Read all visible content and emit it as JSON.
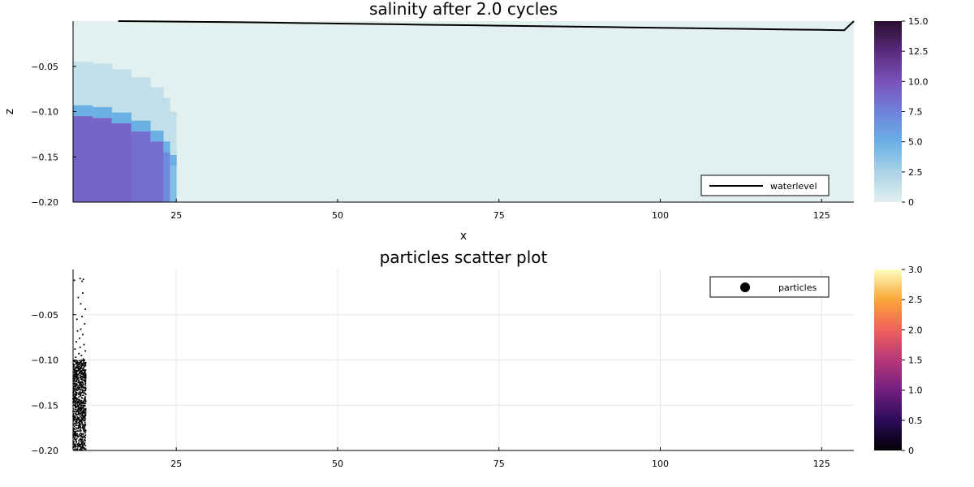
{
  "chart_data": [
    {
      "type": "heatmap",
      "title": "salinity after 2.0 cycles",
      "xlabel": "x",
      "ylabel": "z",
      "xlim": [
        9,
        130
      ],
      "ylim": [
        -0.2,
        0.0
      ],
      "xticks": [
        25,
        50,
        75,
        100,
        125
      ],
      "xtick_labels": [
        "25",
        "50",
        "75",
        "100",
        "125"
      ],
      "yticks": [
        -0.05,
        -0.1,
        -0.15,
        -0.2
      ],
      "ytick_labels": [
        "−0.05",
        "−0.10",
        "−0.15",
        "−0.20"
      ],
      "colorbar": {
        "range": [
          0,
          15
        ],
        "ticks": [
          0,
          2.5,
          5,
          7.5,
          10,
          12.5,
          15
        ],
        "tick_labels": [
          "0",
          "2.5",
          "5.0",
          "7.5",
          "10.0",
          "12.5",
          "15.0"
        ],
        "colormap": [
          "#e2f0ef",
          "#a9d2e6",
          "#6ab0e4",
          "#6f80dc",
          "#7b52b8",
          "#5a2a7e",
          "#2a0f2e"
        ]
      },
      "salt_wedge": [
        {
          "x": 9,
          "interface_z": -0.105,
          "value": 9
        },
        {
          "x": 12,
          "interface_z": -0.107,
          "value": 9
        },
        {
          "x": 15,
          "interface_z": -0.113,
          "value": 9
        },
        {
          "x": 18,
          "interface_z": -0.122,
          "value": 8.5
        },
        {
          "x": 21,
          "interface_z": -0.133,
          "value": 8.5
        },
        {
          "x": 23,
          "interface_z": -0.145,
          "value": 7
        },
        {
          "x": 24,
          "interface_z": -0.16,
          "value": 4
        }
      ],
      "background_value": 0,
      "waterlevel": {
        "name": "waterlevel",
        "x": [
          16,
          20,
          25,
          30,
          35,
          40,
          45,
          50,
          55,
          60,
          65,
          70,
          75,
          80,
          85,
          90,
          95,
          100,
          105,
          110,
          115,
          120,
          125,
          128.5,
          130
        ],
        "y": [
          0.0,
          -0.0002,
          -0.0005,
          -0.0009,
          -0.0013,
          -0.0017,
          -0.0022,
          -0.0027,
          -0.0031,
          -0.0036,
          -0.0041,
          -0.0045,
          -0.005,
          -0.0055,
          -0.0059,
          -0.0064,
          -0.0069,
          -0.0074,
          -0.0078,
          -0.0083,
          -0.0088,
          -0.0093,
          -0.0097,
          -0.01,
          0.0
        ]
      },
      "legend": {
        "position": "bottom-right",
        "entries": [
          "waterlevel"
        ]
      },
      "grid": false,
      "colors": {
        "line": "#000000"
      }
    },
    {
      "type": "scatter",
      "title": "particles scatter plot",
      "xlabel": "",
      "ylabel": "",
      "xlim": [
        9,
        130
      ],
      "ylim": [
        -0.2,
        0.0
      ],
      "xticks": [
        25,
        50,
        75,
        100,
        125
      ],
      "xtick_labels": [
        "25",
        "50",
        "75",
        "100",
        "125"
      ],
      "yticks": [
        -0.05,
        -0.1,
        -0.15,
        -0.2
      ],
      "ytick_labels": [
        "−0.05",
        "−0.10",
        "−0.15",
        "−0.20"
      ],
      "colorbar": {
        "range": [
          0,
          3
        ],
        "ticks": [
          0,
          0.5,
          1,
          1.5,
          2,
          2.5,
          3
        ],
        "tick_labels": [
          "0",
          "0.5",
          "1.0",
          "1.5",
          "2.0",
          "2.5",
          "3.0"
        ],
        "colormap": [
          "#000004",
          "#2d0b59",
          "#721f81",
          "#b73779",
          "#f1605d",
          "#fca636",
          "#fcfdbf"
        ]
      },
      "particles": {
        "name": "particles",
        "x_range": [
          9,
          11
        ],
        "dense_z_range": [
          -0.2,
          -0.1
        ],
        "sparse_points": [
          {
            "x": 9.2,
            "y": -0.012
          },
          {
            "x": 10.1,
            "y": -0.01
          },
          {
            "x": 10.4,
            "y": -0.013
          },
          {
            "x": 10.6,
            "y": -0.011
          },
          {
            "x": 10.5,
            "y": -0.026
          },
          {
            "x": 9.8,
            "y": -0.031
          },
          {
            "x": 10.2,
            "y": -0.038
          },
          {
            "x": 10.9,
            "y": -0.044
          },
          {
            "x": 10.4,
            "y": -0.052
          },
          {
            "x": 9.6,
            "y": -0.055
          },
          {
            "x": 10.8,
            "y": -0.06
          },
          {
            "x": 10.2,
            "y": -0.066
          },
          {
            "x": 9.7,
            "y": -0.068
          },
          {
            "x": 10.5,
            "y": -0.072
          },
          {
            "x": 10.0,
            "y": -0.076
          },
          {
            "x": 9.5,
            "y": -0.08
          },
          {
            "x": 10.7,
            "y": -0.083
          },
          {
            "x": 10.1,
            "y": -0.086
          },
          {
            "x": 9.3,
            "y": -0.088
          },
          {
            "x": 10.9,
            "y": -0.09
          },
          {
            "x": 9.9,
            "y": -0.093
          },
          {
            "x": 10.3,
            "y": -0.095
          },
          {
            "x": 9.4,
            "y": -0.097
          },
          {
            "x": 10.6,
            "y": -0.099
          }
        ]
      },
      "legend": {
        "position": "top-right",
        "entries": [
          "particles"
        ]
      },
      "grid": true,
      "colors": {
        "marker": "#000000"
      }
    }
  ]
}
